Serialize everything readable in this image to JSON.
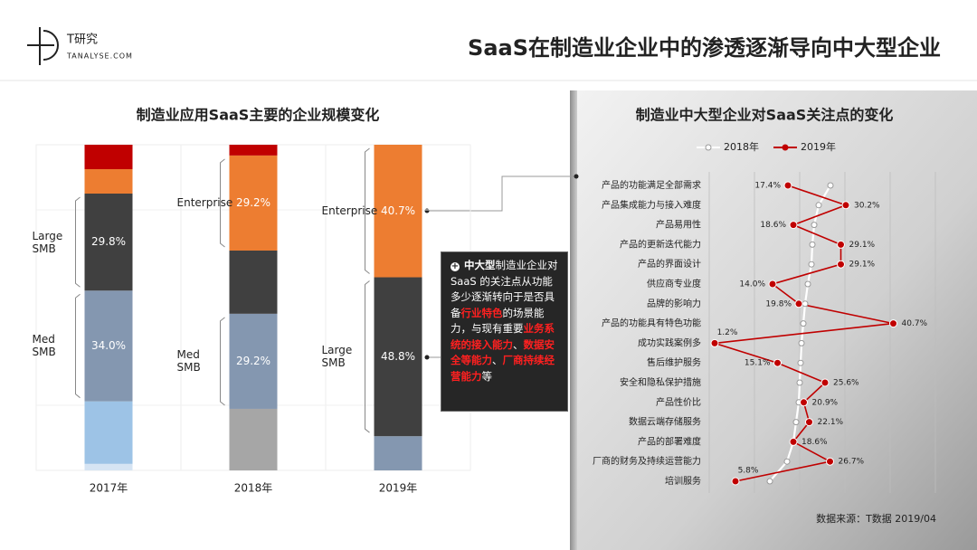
{
  "header": {
    "logo": "T研究",
    "logo_sub": "TANALYSE.COM",
    "title": "SaaS在制造业企业中的渗透逐渐导向中大型企业"
  },
  "chart_data": [
    {
      "type": "bar",
      "stacked": true,
      "title": "制造业应用SaaS主要的企业规模变化",
      "categories": [
        "2017年",
        "2018年",
        "2019年"
      ],
      "ylim": [
        0,
        100
      ],
      "series": [
        {
          "color": "#d6e4f3",
          "values": [
            2.0,
            null,
            null
          ]
        },
        {
          "color": "#9dc3e6",
          "values": [
            19.2,
            null,
            null
          ]
        },
        {
          "color": "#a6a6a6",
          "values": [
            null,
            18.9,
            null
          ]
        },
        {
          "name": "Med SMB",
          "color": "#8497b0",
          "values": [
            34.0,
            29.2,
            10.5
          ],
          "value_labels": [
            "34.0%",
            "29.2%",
            null
          ]
        },
        {
          "name": "Large SMB",
          "color": "#404040",
          "values": [
            29.8,
            19.4,
            48.8
          ],
          "value_labels": [
            "29.8%",
            null,
            "48.8%"
          ]
        },
        {
          "name": "Enterprise",
          "color": "#ed7d31",
          "values": [
            7.5,
            29.2,
            40.7
          ],
          "value_labels": [
            null,
            "29.2%",
            "40.7%"
          ]
        },
        {
          "color": "#c00000",
          "values": [
            7.5,
            3.3,
            null
          ]
        }
      ]
    },
    {
      "type": "line",
      "orientation": "horizontal",
      "title": "制造业中大型企业对SaaS关注点的变化",
      "categories": [
        "产品的功能满足全部需求",
        "产品集成能力与接入难度",
        "产品易用性",
        "产品的更新迭代能力",
        "产品的界面设计",
        "供应商专业度",
        "品牌的影响力",
        "产品的功能具有特色功能",
        "成功实践案例多",
        "售后维护服务",
        "安全和隐私保护措施",
        "产品性价比",
        "数据云端存储服务",
        "产品的部署难度",
        "厂商的财务及持续运营能力",
        "培训服务"
      ],
      "xlim": [
        0,
        50
      ],
      "xticks": [
        0,
        10,
        20,
        30,
        40,
        50
      ],
      "grid": true,
      "legend": "top",
      "series": [
        {
          "name": "2018年",
          "color": "#ffffff",
          "values": [
            26.8,
            24.2,
            23.2,
            22.8,
            22.6,
            21.8,
            21.2,
            20.8,
            20.4,
            20.2,
            20.0,
            19.8,
            19.2,
            18.6,
            17.2,
            13.4
          ]
        },
        {
          "name": "2019年",
          "color": "#c00000",
          "values": [
            17.4,
            30.2,
            18.6,
            29.1,
            29.1,
            14.0,
            19.8,
            40.7,
            1.2,
            15.1,
            25.6,
            20.9,
            22.1,
            18.6,
            26.7,
            5.8
          ],
          "value_labels": [
            "17.4%",
            "30.2%",
            "18.6%",
            "29.1%",
            "29.1%",
            "14.0%",
            "19.8%",
            "40.7%",
            "1.2%",
            "15.1%",
            "25.6%",
            "20.9%",
            "22.1%",
            "18.6%",
            "26.7%",
            "5.8%"
          ]
        }
      ]
    }
  ],
  "callout": {
    "parts": [
      {
        "text": "中大型",
        "style": "bold"
      },
      {
        "text": "制造业企业对 SaaS 的关注点从功能多少逐渐转向于是否具备"
      },
      {
        "text": "行业特色",
        "style": "highlight"
      },
      {
        "text": "的场景能力，与现有重要"
      },
      {
        "text": "业务系统的接入能力",
        "style": "highlight"
      },
      {
        "text": "、"
      },
      {
        "text": "数据安全等能力",
        "style": "highlight"
      },
      {
        "text": "、"
      },
      {
        "text": "厂商持续经营能力",
        "style": "highlight"
      },
      {
        "text": "等"
      }
    ]
  },
  "source": "数据来源：T数据 2019/04"
}
